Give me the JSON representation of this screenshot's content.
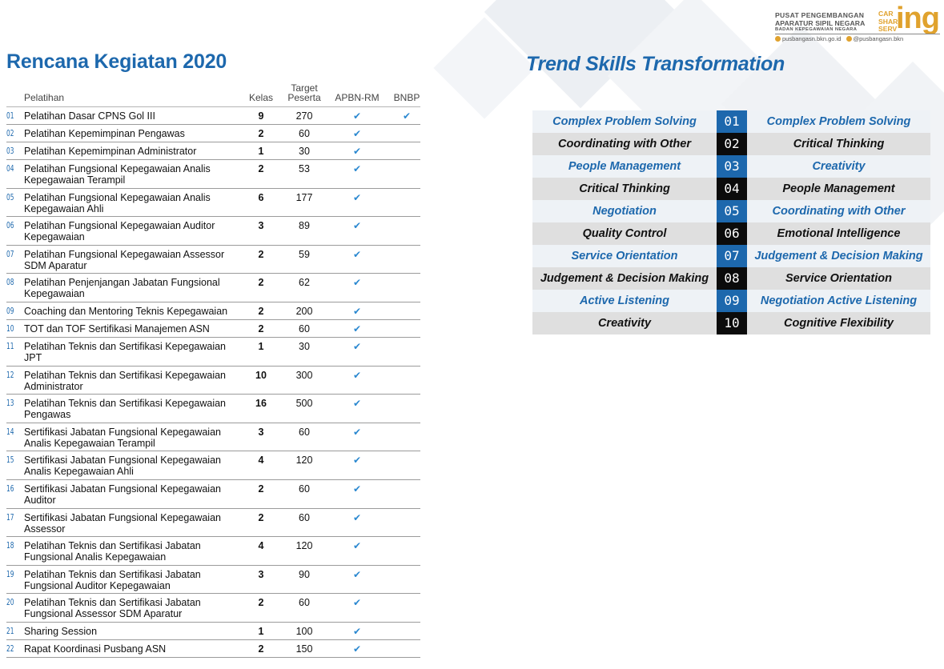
{
  "logo": {
    "line1": "PUSAT PENGEMBANGAN",
    "line2": "APARATUR SIPIL NEGARA",
    "line3": "BADAN KEPEGAWAIAN NEGARA",
    "stack": [
      "CAR",
      "SHAR",
      "SERV"
    ],
    "suffix": "ing",
    "website": "pusbangasn.bkn.go.id",
    "social": "@pusbangasn.bkn"
  },
  "left": {
    "title": "Rencana Kegiatan 2020",
    "headers": {
      "pelatihan": "Pelatihan",
      "kelas": "Kelas",
      "target_line1": "Target",
      "target_line2": "Peserta",
      "apbn": "APBN-RM",
      "bnbp": "BNBP"
    },
    "rows": [
      {
        "no": "01",
        "name1": "Pelatihan Dasar CPNS Gol III",
        "name2": "",
        "kelas": "9",
        "target": "270",
        "apbn": "✔",
        "bnbp": "✔"
      },
      {
        "no": "02",
        "name1": "Pelatihan Kepemimpinan Pengawas",
        "name2": "",
        "kelas": "2",
        "target": "60",
        "apbn": "✔",
        "bnbp": ""
      },
      {
        "no": "03",
        "name1": "Pelatihan Kepemimpinan Administrator",
        "name2": "",
        "kelas": "1",
        "target": "30",
        "apbn": "✔",
        "bnbp": ""
      },
      {
        "no": "04",
        "name1": "Pelatihan Fungsional Kepegawaian Analis",
        "name2": "Kepegawaian Terampil",
        "kelas": "2",
        "target": "53",
        "apbn": "✔",
        "bnbp": ""
      },
      {
        "no": "05",
        "name1": "Pelatihan Fungsional Kepegawaian Analis",
        "name2": "Kepegawaian Ahli",
        "kelas": "6",
        "target": "177",
        "apbn": "✔",
        "bnbp": ""
      },
      {
        "no": "06",
        "name1": "Pelatihan Fungsional Kepegawaian Auditor",
        "name2": "Kepegawaian",
        "kelas": "3",
        "target": "89",
        "apbn": "✔",
        "bnbp": ""
      },
      {
        "no": "07",
        "name1": "Pelatihan Fungsional Kepegawaian Assessor",
        "name2": "SDM Aparatur",
        "kelas": "2",
        "target": "59",
        "apbn": "✔",
        "bnbp": ""
      },
      {
        "no": "08",
        "name1": "Pelatihan Penjenjangan Jabatan Fungsional",
        "name2": "Kepegawaian",
        "kelas": "2",
        "target": "62",
        "apbn": "✔",
        "bnbp": ""
      },
      {
        "no": "09",
        "name1": "Coaching dan Mentoring Teknis Kepegawaian",
        "name2": "",
        "kelas": "2",
        "target": "200",
        "apbn": "✔",
        "bnbp": ""
      },
      {
        "no": "10",
        "name1": "TOT dan TOF Sertifikasi Manajemen ASN",
        "name2": "",
        "kelas": "2",
        "target": "60",
        "apbn": "✔",
        "bnbp": ""
      },
      {
        "no": "11",
        "name1": "Pelatihan Teknis dan Sertifikasi Kepegawaian",
        "name2": "JPT",
        "kelas": "1",
        "target": "30",
        "apbn": "✔",
        "bnbp": ""
      },
      {
        "no": "12",
        "name1": "Pelatihan Teknis dan Sertifikasi Kepegawaian",
        "name2": "Administrator",
        "kelas": "10",
        "target": "300",
        "apbn": "✔",
        "bnbp": ""
      },
      {
        "no": "13",
        "name1": "Pelatihan Teknis dan Sertifikasi Kepegawaian",
        "name2": "Pengawas",
        "kelas": "16",
        "target": "500",
        "apbn": "✔",
        "bnbp": ""
      },
      {
        "no": "14",
        "name1": "Sertifikasi Jabatan Fungsional Kepegawaian",
        "name2": "Analis Kepegawaian Terampil",
        "kelas": "3",
        "target": "60",
        "apbn": "✔",
        "bnbp": ""
      },
      {
        "no": "15",
        "name1": "Sertifikasi Jabatan Fungsional Kepegawaian",
        "name2": "Analis Kepegawaian Ahli",
        "kelas": "4",
        "target": "120",
        "apbn": "✔",
        "bnbp": ""
      },
      {
        "no": "16",
        "name1": "Sertifikasi Jabatan Fungsional Kepegawaian",
        "name2": "Auditor",
        "kelas": "2",
        "target": "60",
        "apbn": "✔",
        "bnbp": ""
      },
      {
        "no": "17",
        "name1": "Sertifikasi Jabatan Fungsional Kepegawaian",
        "name2": "Assessor",
        "kelas": "2",
        "target": "60",
        "apbn": "✔",
        "bnbp": ""
      },
      {
        "no": "18",
        "name1": "Pelatihan Teknis dan Sertifikasi Jabatan",
        "name2": "Fungsional Analis Kepegawaian",
        "kelas": "4",
        "target": "120",
        "apbn": "✔",
        "bnbp": ""
      },
      {
        "no": "19",
        "name1": "Pelatihan Teknis dan  Sertifikasi Jabatan",
        "name2": "Fungsional Auditor Kepegawaian",
        "kelas": "3",
        "target": "90",
        "apbn": "✔",
        "bnbp": ""
      },
      {
        "no": "20",
        "name1": "Pelatihan Teknis dan Sertifikasi Jabatan",
        "name2": "Fungsional Assessor SDM Aparatur",
        "kelas": "2",
        "target": "60",
        "apbn": "✔",
        "bnbp": ""
      },
      {
        "no": "21",
        "name1": "Sharing Session",
        "name2": "",
        "kelas": "1",
        "target": "100",
        "apbn": "✔",
        "bnbp": ""
      },
      {
        "no": "22",
        "name1": "Rapat Koordinasi Pusbang ASN",
        "name2": "",
        "kelas": "2",
        "target": "150",
        "apbn": "✔",
        "bnbp": ""
      }
    ]
  },
  "right": {
    "title": "Trend Skills Transformation",
    "rows": [
      {
        "left": "Complex Problem Solving",
        "num": "01",
        "right": "Complex Problem Solving"
      },
      {
        "left": "Coordinating with Other",
        "num": "02",
        "right": "Critical Thinking"
      },
      {
        "left": "People Management",
        "num": "03",
        "right": "Creativity"
      },
      {
        "left": "Critical Thinking",
        "num": "04",
        "right": "People Management"
      },
      {
        "left": "Negotiation",
        "num": "05",
        "right": "Coordinating with Other"
      },
      {
        "left": "Quality Control",
        "num": "06",
        "right": "Emotional Intelligence"
      },
      {
        "left": "Service Orientation",
        "num": "07",
        "right": "Judgement & Decision Making"
      },
      {
        "left": "Judgement & Decision Making",
        "num": "08",
        "right": "Service Orientation"
      },
      {
        "left": "Active Listening",
        "num": "09",
        "right": "Negotiation Active Listening"
      },
      {
        "left": "Creativity",
        "num": "10",
        "right": "Cognitive Flexibility"
      }
    ]
  },
  "colors": {
    "accent": "#1d68ad",
    "logo": "#e0a22d",
    "check": "#2a88d0"
  }
}
